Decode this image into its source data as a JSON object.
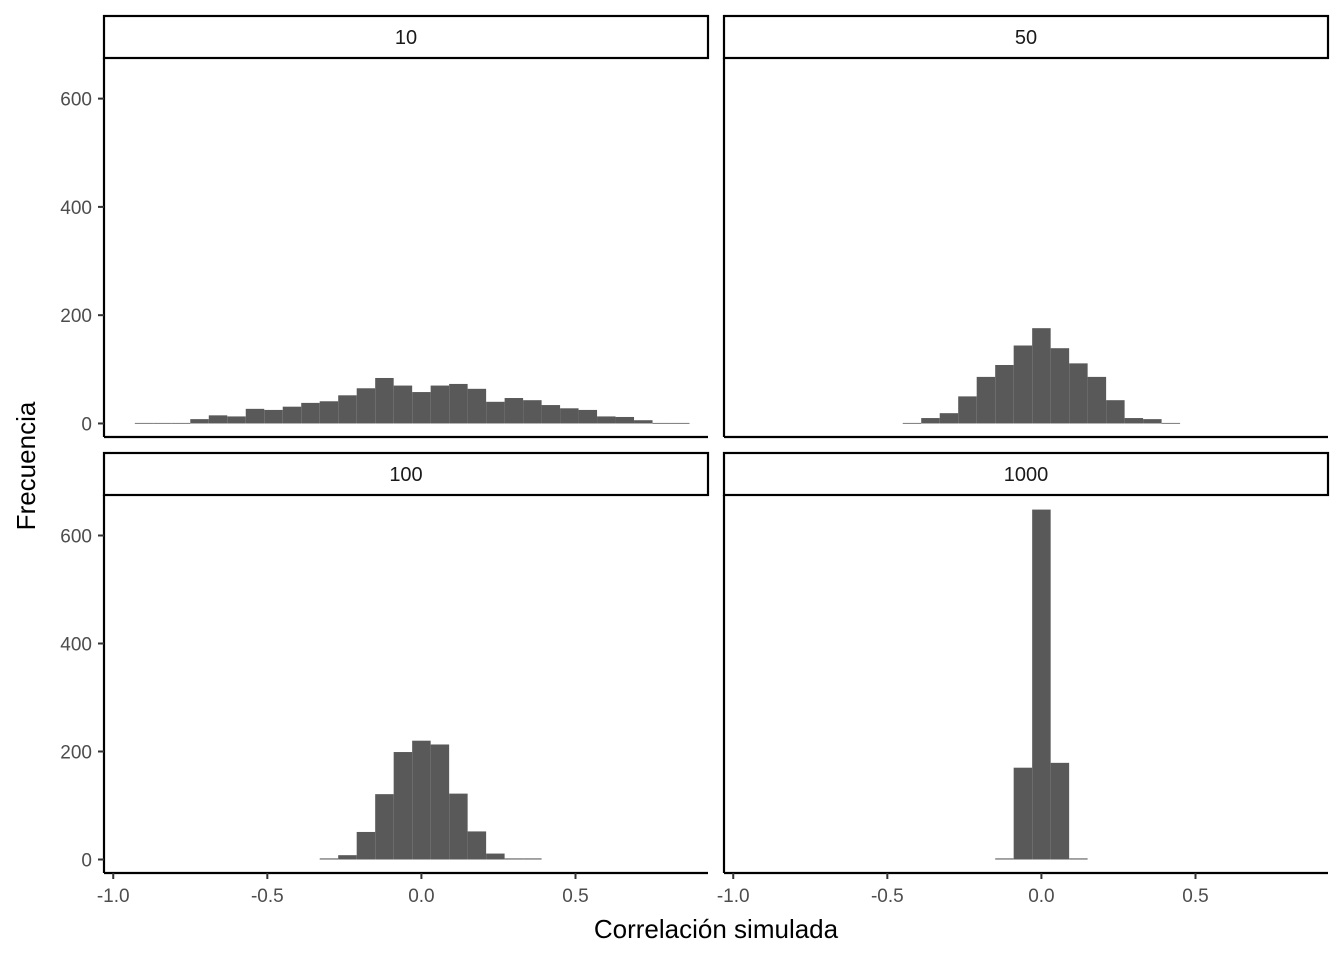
{
  "chart_data": {
    "type": "bar",
    "subtype": "faceted-histogram",
    "xlabel": "Correlación simulada",
    "ylabel": "Frecuencia",
    "xlim": [
      -1.03,
      0.93
    ],
    "ylim": [
      -25,
      675
    ],
    "xticks": [
      -1.0,
      -0.5,
      0.0,
      0.5
    ],
    "xtick_labels": [
      "-1.0",
      "-0.5",
      "0.0",
      "0.5"
    ],
    "yticks": [
      0,
      200,
      400,
      600
    ],
    "ytick_labels": [
      "0",
      "200",
      "400",
      "600"
    ],
    "grid": false,
    "bar_color": "#595959",
    "panels": [
      {
        "label": "10",
        "bin_width": 0.06,
        "bins": [
          {
            "x": -0.9,
            "count": 1
          },
          {
            "x": -0.84,
            "count": 1
          },
          {
            "x": -0.78,
            "count": 1
          },
          {
            "x": -0.72,
            "count": 8
          },
          {
            "x": -0.66,
            "count": 15
          },
          {
            "x": -0.6,
            "count": 13
          },
          {
            "x": -0.54,
            "count": 27
          },
          {
            "x": -0.48,
            "count": 25
          },
          {
            "x": -0.42,
            "count": 31
          },
          {
            "x": -0.36,
            "count": 38
          },
          {
            "x": -0.3,
            "count": 41
          },
          {
            "x": -0.24,
            "count": 52
          },
          {
            "x": -0.18,
            "count": 65
          },
          {
            "x": -0.12,
            "count": 84
          },
          {
            "x": -0.06,
            "count": 70
          },
          {
            "x": 0.0,
            "count": 58
          },
          {
            "x": 0.06,
            "count": 70
          },
          {
            "x": 0.12,
            "count": 73
          },
          {
            "x": 0.18,
            "count": 64
          },
          {
            "x": 0.24,
            "count": 40
          },
          {
            "x": 0.3,
            "count": 47
          },
          {
            "x": 0.36,
            "count": 43
          },
          {
            "x": 0.42,
            "count": 34
          },
          {
            "x": 0.48,
            "count": 28
          },
          {
            "x": 0.54,
            "count": 25
          },
          {
            "x": 0.6,
            "count": 13
          },
          {
            "x": 0.66,
            "count": 12
          },
          {
            "x": 0.72,
            "count": 6
          },
          {
            "x": 0.78,
            "count": 1
          },
          {
            "x": 0.84,
            "count": 1
          }
        ]
      },
      {
        "label": "50",
        "bin_width": 0.06,
        "bins": [
          {
            "x": -0.42,
            "count": 1
          },
          {
            "x": -0.36,
            "count": 10
          },
          {
            "x": -0.3,
            "count": 19
          },
          {
            "x": -0.24,
            "count": 50
          },
          {
            "x": -0.18,
            "count": 86
          },
          {
            "x": -0.12,
            "count": 108
          },
          {
            "x": -0.06,
            "count": 144
          },
          {
            "x": 0.0,
            "count": 176
          },
          {
            "x": 0.06,
            "count": 139
          },
          {
            "x": 0.12,
            "count": 111
          },
          {
            "x": 0.18,
            "count": 86
          },
          {
            "x": 0.24,
            "count": 43
          },
          {
            "x": 0.3,
            "count": 10
          },
          {
            "x": 0.36,
            "count": 8
          },
          {
            "x": 0.42,
            "count": 1
          }
        ]
      },
      {
        "label": "100",
        "bin_width": 0.06,
        "bins": [
          {
            "x": -0.3,
            "count": 2
          },
          {
            "x": -0.24,
            "count": 8
          },
          {
            "x": -0.18,
            "count": 51
          },
          {
            "x": -0.12,
            "count": 121
          },
          {
            "x": -0.06,
            "count": 199
          },
          {
            "x": 0.0,
            "count": 220
          },
          {
            "x": 0.06,
            "count": 213
          },
          {
            "x": 0.12,
            "count": 122
          },
          {
            "x": 0.18,
            "count": 52
          },
          {
            "x": 0.24,
            "count": 11
          },
          {
            "x": 0.3,
            "count": 2
          },
          {
            "x": 0.36,
            "count": 2
          }
        ]
      },
      {
        "label": "1000",
        "bin_width": 0.06,
        "bins": [
          {
            "x": -0.12,
            "count": 2
          },
          {
            "x": -0.06,
            "count": 170
          },
          {
            "x": 0.0,
            "count": 648
          },
          {
            "x": 0.06,
            "count": 179
          },
          {
            "x": 0.12,
            "count": 2
          }
        ]
      }
    ]
  }
}
